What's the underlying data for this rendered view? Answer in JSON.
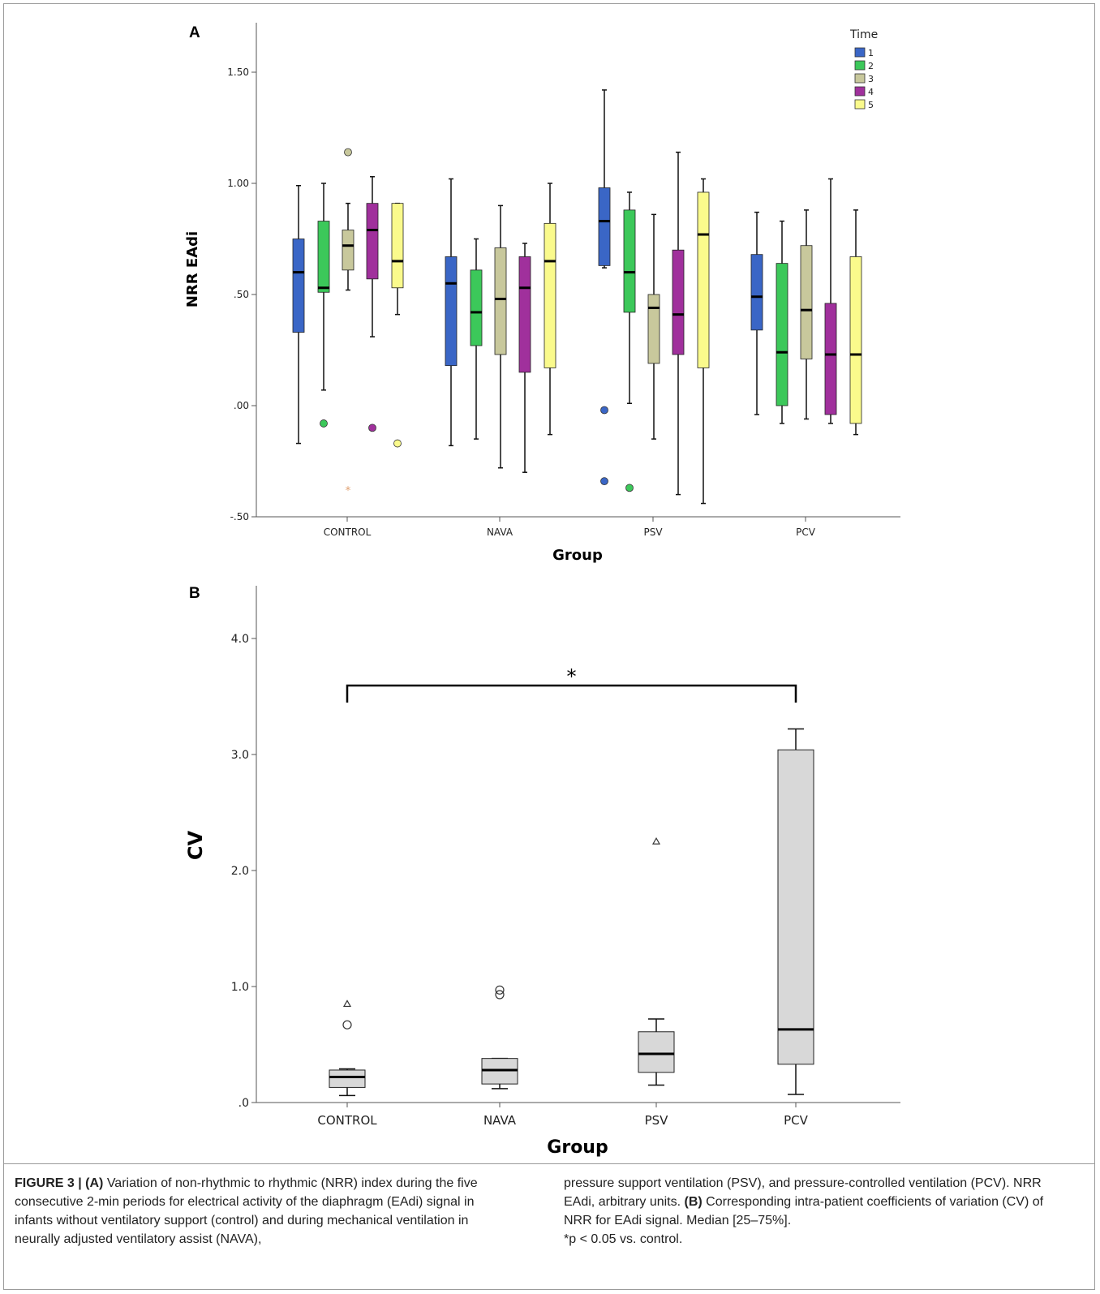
{
  "chart_data": [
    {
      "type": "box",
      "panel_label": "A",
      "ylabel": "NRR EAdi",
      "xlabel": "Group",
      "ylim": [
        -0.5,
        1.6
      ],
      "yticks": [
        -0.5,
        0,
        0.5,
        1.0,
        1.5
      ],
      "ytick_labels": [
        "-.50",
        ".00",
        ".50",
        "1.00",
        "1.50"
      ],
      "categories": [
        "CONTROL",
        "NAVA",
        "PSV",
        "PCV"
      ],
      "legend": {
        "title": "Time",
        "position": "top-right",
        "entries": [
          "1",
          "2",
          "3",
          "4",
          "5"
        ]
      },
      "colors": [
        "#3a66c6",
        "#3cc85a",
        "#c8c89c",
        "#a0309c",
        "#fafa8c"
      ],
      "boxes": [
        {
          "group": "CONTROL",
          "series": "1",
          "min": -0.17,
          "q1": 0.33,
          "median": 0.6,
          "q3": 0.75,
          "max": 0.99,
          "outliers": []
        },
        {
          "group": "CONTROL",
          "series": "2",
          "min": 0.07,
          "q1": 0.51,
          "median": 0.53,
          "q3": 0.83,
          "max": 1.0,
          "outliers": [
            -0.08
          ]
        },
        {
          "group": "CONTROL",
          "series": "3",
          "min": 0.52,
          "q1": 0.61,
          "median": 0.72,
          "q3": 0.79,
          "max": 0.91,
          "outliers": [
            1.14
          ],
          "extremes": [
            -0.38
          ]
        },
        {
          "group": "CONTROL",
          "series": "4",
          "min": 0.31,
          "q1": 0.57,
          "median": 0.79,
          "q3": 0.91,
          "max": 1.03,
          "outliers": [
            -0.1
          ]
        },
        {
          "group": "CONTROL",
          "series": "5",
          "min": 0.41,
          "q1": 0.53,
          "median": 0.65,
          "q3": 0.91,
          "max": 0.91,
          "outliers": [
            -0.17
          ]
        },
        {
          "group": "NAVA",
          "series": "1",
          "min": -0.18,
          "q1": 0.18,
          "median": 0.55,
          "q3": 0.67,
          "max": 1.02,
          "outliers": []
        },
        {
          "group": "NAVA",
          "series": "2",
          "min": -0.15,
          "q1": 0.27,
          "median": 0.42,
          "q3": 0.61,
          "max": 0.75,
          "outliers": []
        },
        {
          "group": "NAVA",
          "series": "3",
          "min": -0.28,
          "q1": 0.23,
          "median": 0.48,
          "q3": 0.71,
          "max": 0.9,
          "outliers": []
        },
        {
          "group": "NAVA",
          "series": "4",
          "min": -0.3,
          "q1": 0.15,
          "median": 0.53,
          "q3": 0.67,
          "max": 0.73,
          "outliers": []
        },
        {
          "group": "NAVA",
          "series": "5",
          "min": -0.13,
          "q1": 0.17,
          "median": 0.65,
          "q3": 0.82,
          "max": 1.0,
          "outliers": []
        },
        {
          "group": "PSV",
          "series": "1",
          "min": 0.62,
          "q1": 0.63,
          "median": 0.83,
          "q3": 0.98,
          "max": 1.42,
          "outliers": [
            -0.02,
            -0.34
          ]
        },
        {
          "group": "PSV",
          "series": "2",
          "min": 0.01,
          "q1": 0.42,
          "median": 0.6,
          "q3": 0.88,
          "max": 0.96,
          "outliers": [
            -0.37
          ]
        },
        {
          "group": "PSV",
          "series": "3",
          "min": -0.15,
          "q1": 0.19,
          "median": 0.44,
          "q3": 0.5,
          "max": 0.86,
          "outliers": []
        },
        {
          "group": "PSV",
          "series": "4",
          "min": -0.4,
          "q1": 0.23,
          "median": 0.41,
          "q3": 0.7,
          "max": 1.14,
          "outliers": []
        },
        {
          "group": "PSV",
          "series": "5",
          "min": -0.44,
          "q1": 0.17,
          "median": 0.77,
          "q3": 0.96,
          "max": 1.02,
          "outliers": []
        },
        {
          "group": "PCV",
          "series": "1",
          "min": -0.04,
          "q1": 0.34,
          "median": 0.49,
          "q3": 0.68,
          "max": 0.87,
          "outliers": []
        },
        {
          "group": "PCV",
          "series": "2",
          "min": -0.08,
          "q1": 0.0,
          "median": 0.24,
          "q3": 0.64,
          "max": 0.83,
          "outliers": []
        },
        {
          "group": "PCV",
          "series": "3",
          "min": -0.06,
          "q1": 0.21,
          "median": 0.43,
          "q3": 0.72,
          "max": 0.88,
          "outliers": []
        },
        {
          "group": "PCV",
          "series": "4",
          "min": -0.08,
          "q1": -0.04,
          "median": 0.23,
          "q3": 0.46,
          "max": 1.02,
          "outliers": []
        },
        {
          "group": "PCV",
          "series": "5",
          "min": -0.13,
          "q1": -0.08,
          "median": 0.23,
          "q3": 0.67,
          "max": 0.88,
          "outliers": []
        }
      ]
    },
    {
      "type": "box",
      "panel_label": "B",
      "ylabel": "CV",
      "xlabel": "Group",
      "ylim": [
        0,
        4.4
      ],
      "yticks": [
        0,
        1.0,
        2.0,
        3.0,
        4.0
      ],
      "ytick_labels": [
        ".0",
        "1.0",
        "2.0",
        "3.0",
        "4.0"
      ],
      "categories": [
        "CONTROL",
        "NAVA",
        "PSV",
        "PCV"
      ],
      "box_color": "#d8d8d8",
      "boxes": [
        {
          "group": "CONTROL",
          "min": 0.06,
          "q1": 0.13,
          "median": 0.22,
          "q3": 0.28,
          "max": 0.29,
          "outliers": [
            0.67
          ],
          "extremes": [
            0.85
          ]
        },
        {
          "group": "NAVA",
          "min": 0.12,
          "q1": 0.16,
          "median": 0.28,
          "q3": 0.38,
          "max": 0.38,
          "outliers": [
            0.93,
            0.97
          ]
        },
        {
          "group": "PSV",
          "min": 0.15,
          "q1": 0.26,
          "median": 0.42,
          "q3": 0.61,
          "max": 0.72,
          "outliers": [],
          "extremes": [
            2.25
          ]
        },
        {
          "group": "PCV",
          "min": 0.07,
          "q1": 0.33,
          "median": 0.63,
          "q3": 3.04,
          "max": 3.22,
          "outliers": []
        }
      ],
      "annotation": {
        "text": "*",
        "from": "CONTROL",
        "to": "PCV"
      }
    }
  ],
  "caption": {
    "label": "FIGURE 3 | ",
    "a_marker": "(A)",
    "part1": " Variation of non-rhythmic to rhythmic (NRR) index during the five consecutive 2-min periods for electrical activity of the diaphragm (EAdi) signal in infants without ventilatory support (control) and during mechanical ventilation in neurally adjusted ventilatory assist (NAVA),",
    "part2": "pressure support ventilation (PSV), and pressure-controlled ventilation (PCV). NRR EAdi, arbitrary units. ",
    "b_marker": "(B)",
    "part3": " Corresponding intra-patient coefficients of variation (CV) of NRR for EAdi signal. Median [25–75%].",
    "part4": "*p < 0.05 vs. control."
  }
}
